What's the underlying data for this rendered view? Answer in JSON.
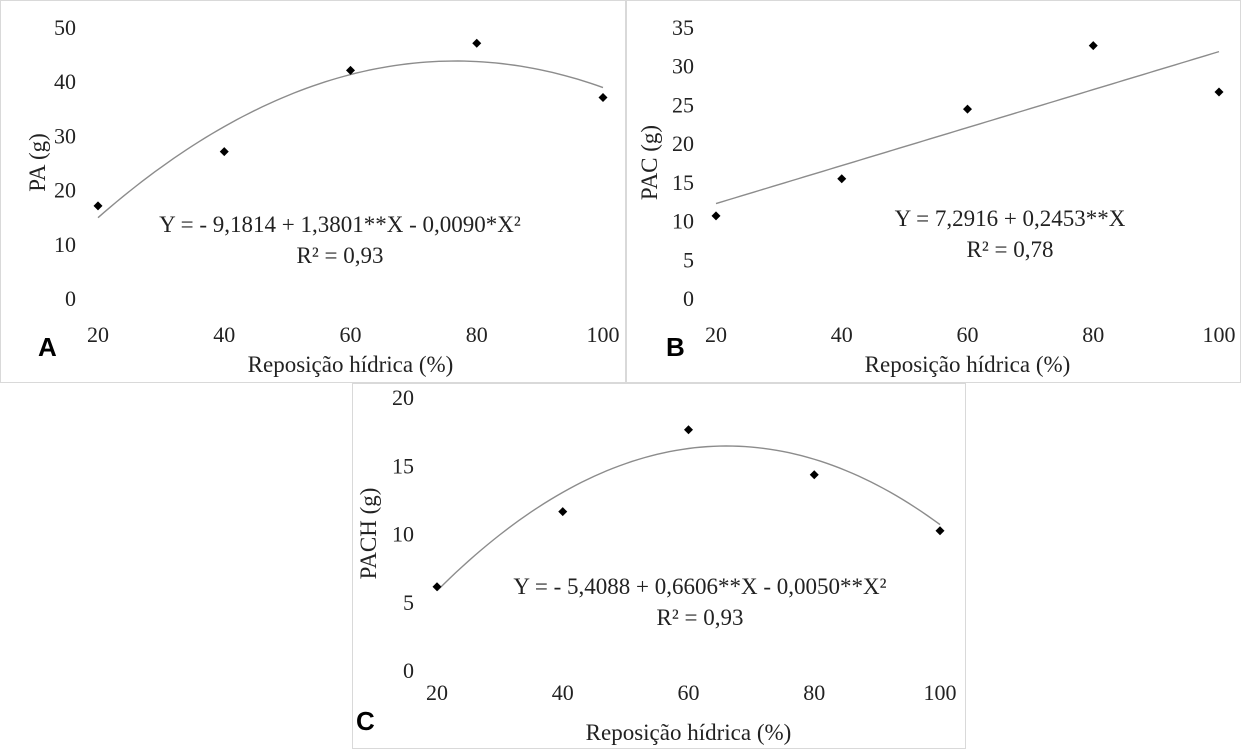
{
  "chart_data": [
    {
      "type": "scatter",
      "panel_letter": "A",
      "xlabel": "Reposição hídrica (%)",
      "ylabel": "PA (g)",
      "xlim": [
        20,
        100
      ],
      "ylim": [
        0,
        50
      ],
      "xticks": [
        20,
        40,
        60,
        80,
        100
      ],
      "yticks": [
        0,
        10,
        20,
        30,
        40,
        50
      ],
      "x": [
        20,
        40,
        60,
        80,
        100
      ],
      "y": [
        17,
        27,
        42,
        47,
        37
      ],
      "trendline": {
        "type": "quadratic",
        "coef": [
          -9.1814,
          1.3801,
          -0.009
        ]
      },
      "equation": "Y = - 9,1814 + 1,3801**X - 0,0090*X²",
      "r2": "R² = 0,93",
      "grid": false
    },
    {
      "type": "scatter",
      "panel_letter": "B",
      "xlabel": "Reposição hídrica (%)",
      "ylabel": "PAC (g)",
      "xlim": [
        20,
        100
      ],
      "ylim": [
        0,
        35
      ],
      "xticks": [
        20,
        40,
        60,
        80,
        100
      ],
      "yticks": [
        0,
        5,
        10,
        15,
        20,
        25,
        30,
        35
      ],
      "x": [
        20,
        40,
        60,
        80,
        100
      ],
      "y": [
        10.6,
        15.4,
        24.4,
        32.6,
        26.6
      ],
      "trendline": {
        "type": "linear",
        "coef": [
          7.2916,
          0.2453
        ]
      },
      "equation": "Y = 7,2916 + 0,2453**X",
      "r2": "R² = 0,78",
      "grid": false
    },
    {
      "type": "scatter",
      "panel_letter": "C",
      "xlabel": "Reposição hídrica (%)",
      "ylabel": "PACH (g)",
      "xlim": [
        20,
        100
      ],
      "ylim": [
        0,
        20
      ],
      "xticks": [
        20,
        40,
        60,
        80,
        100
      ],
      "yticks": [
        0,
        5,
        10,
        15,
        20
      ],
      "x": [
        20,
        40,
        60,
        80,
        100
      ],
      "y": [
        6.1,
        11.6,
        17.6,
        14.3,
        10.2
      ],
      "trendline": {
        "type": "quadratic",
        "coef": [
          -5.4088,
          0.6606,
          -0.005
        ]
      },
      "equation": "Y = - 5,4088 + 0,6606**X - 0,0050**X²",
      "r2": "R² = 0,93",
      "grid": false
    }
  ],
  "colors": {
    "marker": "#000000",
    "trendline": "#8c8c8c",
    "axis": "#000000",
    "text": "#222222"
  }
}
